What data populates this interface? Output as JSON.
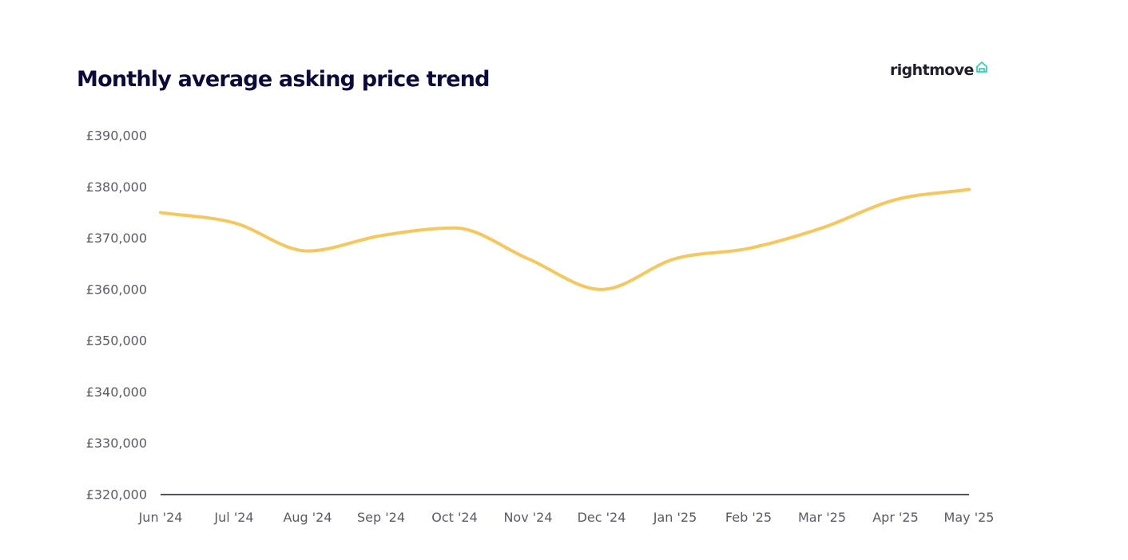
{
  "brand": {
    "name": "rightmove",
    "icon": "house-outline-icon",
    "icon_color": "#2ed3b0"
  },
  "chart_data": {
    "type": "line",
    "title": "Monthly average asking price trend",
    "xlabel": "",
    "ylabel": "",
    "x": [
      "Jun '24",
      "Jul '24",
      "Aug '24",
      "Sep '24",
      "Oct '24",
      "Nov '24",
      "Dec '24",
      "Jan '25",
      "Feb '25",
      "Mar '25",
      "Apr '25",
      "May '25"
    ],
    "series": [
      {
        "values": [
          375000,
          373000,
          367500,
          370500,
          372000,
          366000,
          360000,
          366000,
          368000,
          372000,
          377500,
          379500
        ],
        "color": "#f5c75d"
      }
    ],
    "ylim": [
      320000,
      390000
    ],
    "yticks": [
      320000,
      330000,
      340000,
      350000,
      360000,
      370000,
      380000,
      390000
    ],
    "ytick_labels": [
      "£320,000",
      "£330,000",
      "£340,000",
      "£350,000",
      "£360,000",
      "£370,000",
      "£380,000",
      "£390,000"
    ],
    "grid": false,
    "legend": "none",
    "axis_color": "#1a1a2e"
  }
}
